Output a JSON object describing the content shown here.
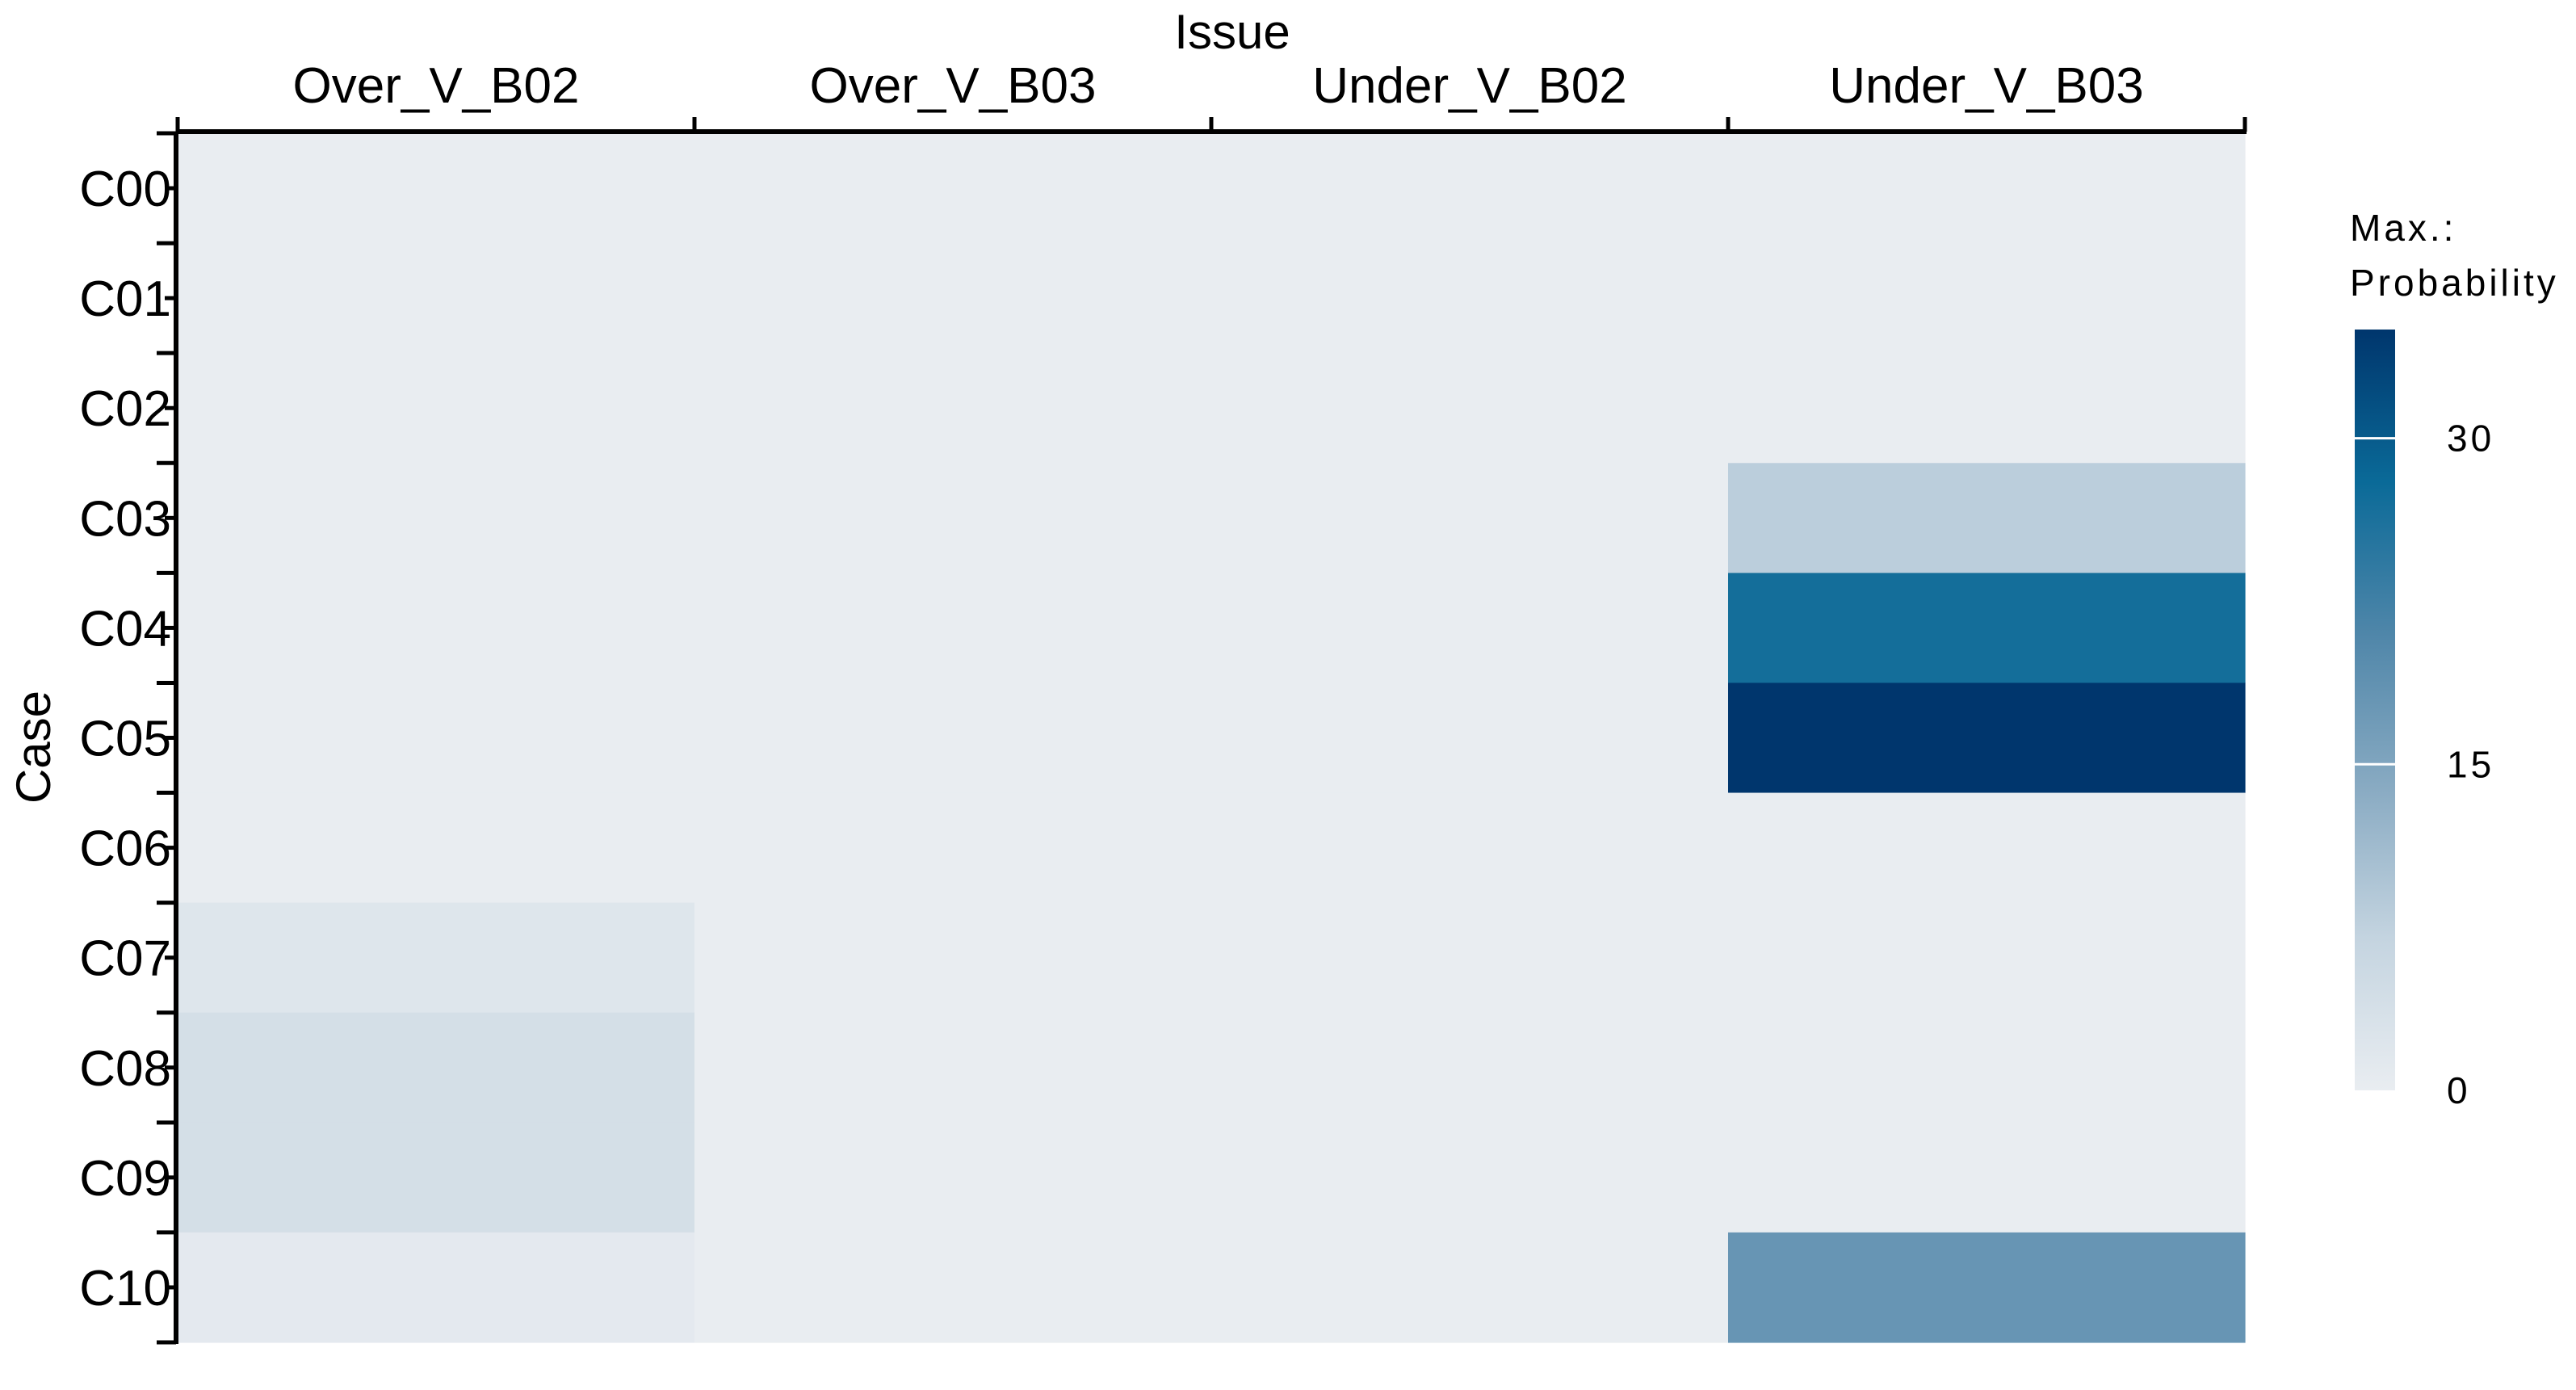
{
  "chart_data": {
    "type": "heatmap",
    "title": "",
    "xlabel": "Issue",
    "ylabel": "Case",
    "x_categories": [
      "Over_V_B02",
      "Over_V_B03",
      "Under_V_B02",
      "Under_V_B03"
    ],
    "y_categories": [
      "C00",
      "C01",
      "C02",
      "C03",
      "C04",
      "C05",
      "C06",
      "C07",
      "C08",
      "C09",
      "C10"
    ],
    "values": [
      [
        0,
        0,
        0,
        0
      ],
      [
        0,
        0,
        0,
        0
      ],
      [
        0,
        0,
        0,
        0
      ],
      [
        0,
        0,
        0,
        8
      ],
      [
        0,
        0,
        0,
        27
      ],
      [
        0,
        0,
        0,
        35
      ],
      [
        0,
        0,
        0,
        0
      ],
      [
        2,
        0,
        0,
        0
      ],
      [
        4,
        0,
        0,
        0
      ],
      [
        4,
        0,
        0,
        0
      ],
      [
        1,
        0,
        0,
        18
      ]
    ],
    "x_axis_position": "top",
    "grid": false,
    "legend": {
      "title_line1": "Max.:",
      "title_line2": "Probability",
      "placement": "right",
      "range": [
        0,
        35
      ],
      "ticks": [
        0,
        15,
        30
      ],
      "tick_labels": [
        "0",
        "15",
        "30"
      ]
    },
    "colors": {
      "low": "#e9edf1",
      "stops": [
        "#e9edf1",
        "#c4d4e0",
        "#88aac2",
        "#4f86a9",
        "#0a6a98",
        "#00366d"
      ]
    }
  }
}
